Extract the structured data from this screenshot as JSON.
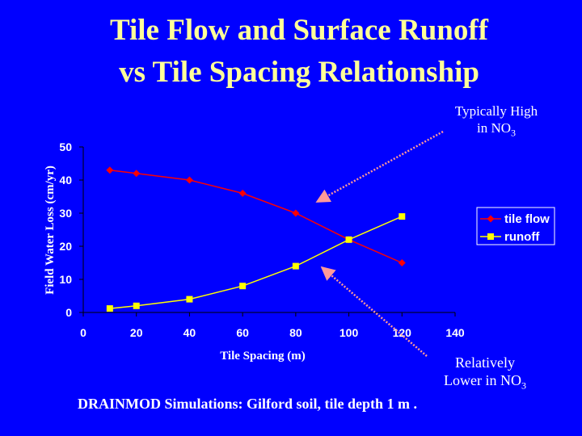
{
  "title_line1": "Tile Flow and Surface Runoff",
  "title_line2": "vs Tile Spacing Relationship",
  "annotations": {
    "high_line1": "Typically High",
    "high_line2_prefix": "in NO",
    "high_sub": "3",
    "low_line1": "Relatively",
    "low_line2_prefix": "Lower in NO",
    "low_sub": "3"
  },
  "footer": "DRAINMOD Simulations: Gilford soil, tile depth 1 m .",
  "colors": {
    "background": "#0000ff",
    "title": "#ffff99",
    "tile_flow": "#ff0000",
    "runoff": "#ffff00",
    "arrow": "#ff9999"
  },
  "chart_data": {
    "type": "line",
    "title": "",
    "xlabel": "Tile Spacing (m)",
    "ylabel": "Field Water Loss (cm/yr)",
    "xlim": [
      0,
      140
    ],
    "ylim": [
      0,
      50
    ],
    "xticks": [
      0,
      20,
      40,
      60,
      80,
      100,
      120,
      140
    ],
    "yticks": [
      0,
      10,
      20,
      30,
      40,
      50
    ],
    "grid": false,
    "legend_position": "right",
    "series": [
      {
        "name": "tile flow",
        "marker": "diamond",
        "x": [
          10,
          20,
          40,
          60,
          80,
          100,
          120
        ],
        "y": [
          43,
          42,
          40,
          36,
          30,
          22,
          15
        ]
      },
      {
        "name": "runoff",
        "marker": "square",
        "x": [
          10,
          20,
          40,
          60,
          80,
          100,
          120
        ],
        "y": [
          1.2,
          2,
          4,
          8,
          14,
          22,
          29
        ]
      }
    ]
  }
}
